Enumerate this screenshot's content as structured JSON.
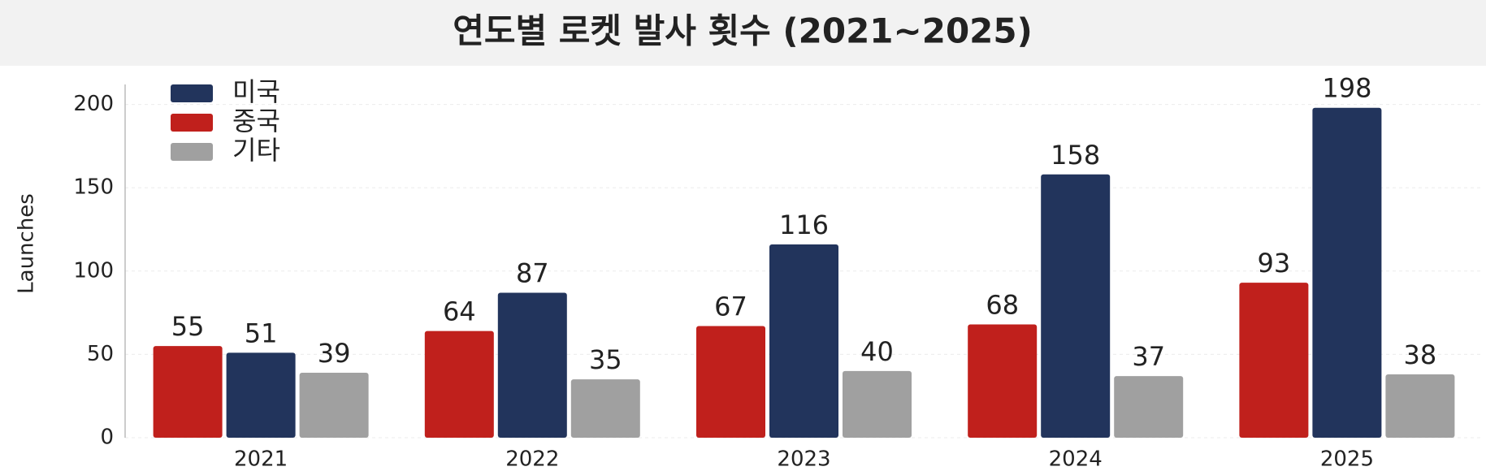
{
  "chart_data": {
    "type": "bar",
    "title": "연도별 로켓 발사 횟수 (2021~2025)",
    "y_label": "Launches",
    "categories": [
      "2021",
      "2022",
      "2023",
      "2024",
      "2025"
    ],
    "series": [
      {
        "name": "미국",
        "color": "#22345c",
        "values": [
          51,
          87,
          116,
          158,
          198
        ]
      },
      {
        "name": "중국",
        "color": "#c0201c",
        "values": [
          55,
          64,
          67,
          68,
          93
        ]
      },
      {
        "name": "기타",
        "color": "#a0a0a0",
        "values": [
          39,
          35,
          40,
          37,
          38
        ]
      }
    ],
    "ylim": [
      0,
      212
    ],
    "yticks": [
      0,
      50,
      100,
      150,
      200
    ],
    "grid": true,
    "legend": "upper left"
  }
}
